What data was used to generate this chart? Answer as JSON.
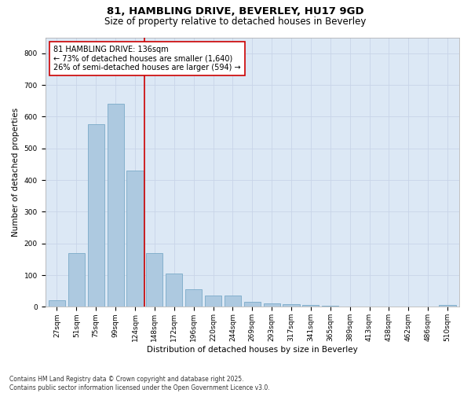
{
  "title1": "81, HAMBLING DRIVE, BEVERLEY, HU17 9GD",
  "title2": "Size of property relative to detached houses in Beverley",
  "xlabel": "Distribution of detached houses by size in Beverley",
  "ylabel": "Number of detached properties",
  "categories": [
    "27sqm",
    "51sqm",
    "75sqm",
    "99sqm",
    "124sqm",
    "148sqm",
    "172sqm",
    "196sqm",
    "220sqm",
    "244sqm",
    "269sqm",
    "293sqm",
    "317sqm",
    "341sqm",
    "365sqm",
    "389sqm",
    "413sqm",
    "438sqm",
    "462sqm",
    "486sqm",
    "510sqm"
  ],
  "values": [
    20,
    170,
    575,
    640,
    430,
    170,
    105,
    55,
    35,
    35,
    15,
    10,
    8,
    5,
    3,
    2,
    1,
    1,
    1,
    1,
    5
  ],
  "bar_color": "#adc9e0",
  "bar_edge_color": "#7aaac8",
  "vline_x": 4.5,
  "vline_color": "#cc0000",
  "annotation_text": "81 HAMBLING DRIVE: 136sqm\n← 73% of detached houses are smaller (1,640)\n26% of semi-detached houses are larger (594) →",
  "annotation_box_color": "#ffffff",
  "annotation_box_edge": "#cc0000",
  "ylim": [
    0,
    850
  ],
  "yticks": [
    0,
    100,
    200,
    300,
    400,
    500,
    600,
    700,
    800
  ],
  "grid_color": "#c8d4e8",
  "background_color": "#dce8f5",
  "footer": "Contains HM Land Registry data © Crown copyright and database right 2025.\nContains public sector information licensed under the Open Government Licence v3.0.",
  "title_fontsize": 9.5,
  "subtitle_fontsize": 8.5,
  "tick_fontsize": 6.5,
  "label_fontsize": 7.5,
  "annotation_fontsize": 7.0,
  "footer_fontsize": 5.5
}
